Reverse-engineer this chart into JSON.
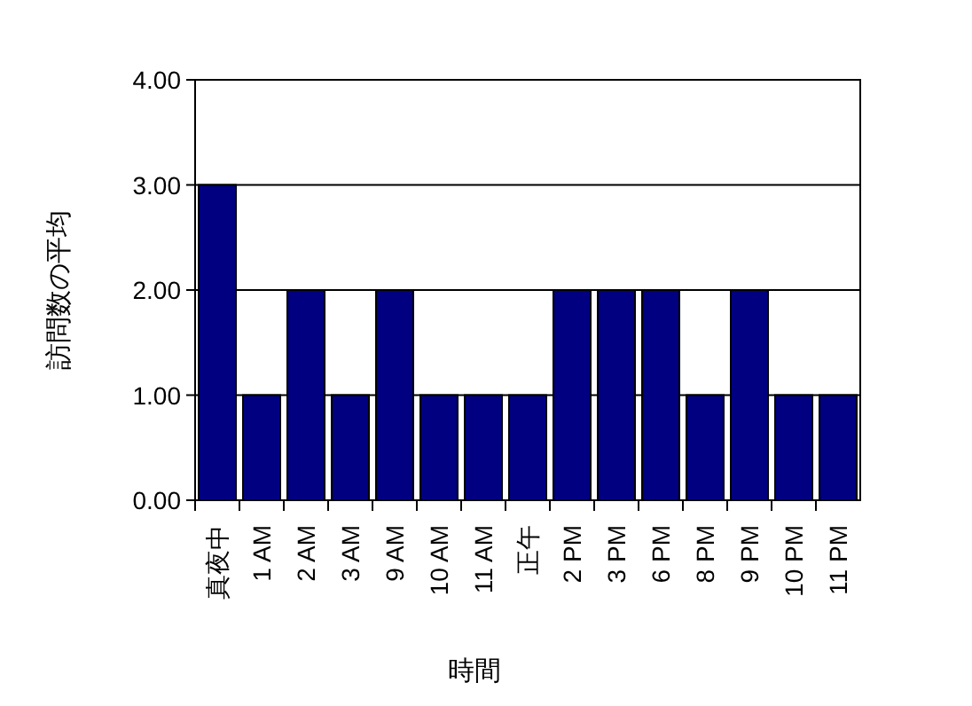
{
  "chart_data": {
    "type": "bar",
    "xlabel": "時間",
    "ylabel": "訪問数の平均",
    "categories": [
      "真夜中",
      "1 AM",
      "2 AM",
      "3 AM",
      "9 AM",
      "10 AM",
      "11 AM",
      "正午",
      "2 PM",
      "3 PM",
      "6 PM",
      "8 PM",
      "9 PM",
      "10 PM",
      "11 PM"
    ],
    "values": [
      3,
      1,
      2,
      1,
      2,
      1,
      1,
      1,
      2,
      2,
      2,
      1,
      2,
      1,
      1
    ],
    "color": "#000080",
    "ylim": [
      0,
      4
    ],
    "yticks": [
      {
        "value": 0,
        "label": "0.00"
      },
      {
        "value": 1,
        "label": "1.00"
      },
      {
        "value": 2,
        "label": "2.00"
      },
      {
        "value": 3,
        "label": "3.00"
      },
      {
        "value": 4,
        "label": "4.00"
      }
    ],
    "grid": "y"
  }
}
